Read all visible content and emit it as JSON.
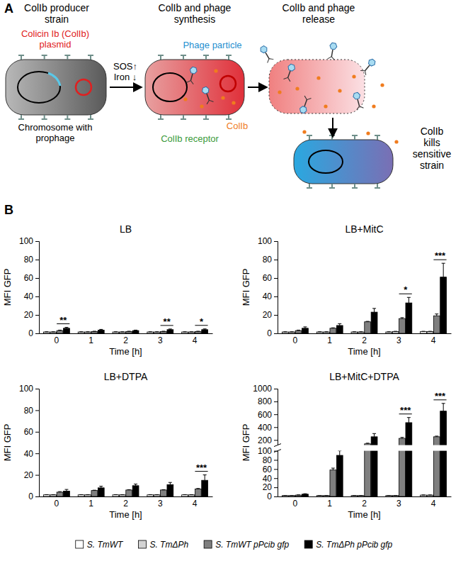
{
  "panels": [
    "A",
    "B"
  ],
  "diagram": {
    "titles": [
      [
        "ColIb producer",
        "strain"
      ],
      [
        "ColIb and phage",
        "synthesis"
      ],
      [
        "ColIb and phage",
        "release"
      ]
    ],
    "plasmid": [
      "Colicin Ib (ColIb)",
      "plasmid"
    ],
    "chromosome": [
      "Chromosome with",
      "prophage"
    ],
    "conditions": [
      "SOS↑",
      "Iron ↓"
    ],
    "phage": "Phage particle",
    "colicin": "ColIb",
    "receptor": "ColIb receptor",
    "killing": [
      "ColIb",
      "kills",
      "sensitive",
      "strain"
    ]
  },
  "chart_data": [
    {
      "type": "bar",
      "title": "LB",
      "x_label": "Time [h]",
      "y_label": "MFI GFP",
      "categories": [
        0,
        1,
        2,
        3,
        4
      ],
      "ylim": [
        0,
        100
      ],
      "yticks": [
        0,
        20,
        40,
        60,
        80,
        100
      ],
      "series": [
        {
          "name": "S. TmWT",
          "color": "#ffffff",
          "values": [
            1.5,
            1.5,
            1.5,
            1.5,
            1.5
          ],
          "errors": [
            0.2,
            0.2,
            0.2,
            0.2,
            0.2
          ]
        },
        {
          "name": "S. TmΔPh",
          "color": "#d3d3d3",
          "values": [
            1.5,
            1.5,
            1.5,
            1.5,
            1.5
          ],
          "errors": [
            0.2,
            0.2,
            0.2,
            0.2,
            0.2
          ]
        },
        {
          "name": "S. TmWT pPcib gfp",
          "color": "#7f7f7f",
          "values": [
            3,
            2,
            2,
            2,
            2
          ],
          "errors": [
            0.5,
            0.3,
            0.3,
            0.3,
            0.3
          ]
        },
        {
          "name": "S. TmΔPh pPcib gfp",
          "color": "#000000",
          "values": [
            5.5,
            3.5,
            3,
            4,
            4
          ],
          "errors": [
            1,
            0.8,
            0.5,
            0.7,
            0.8
          ]
        }
      ],
      "annotations": [
        {
          "x": 0,
          "text": "**"
        },
        {
          "x": 3,
          "text": "**"
        },
        {
          "x": 4,
          "text": "*"
        }
      ]
    },
    {
      "type": "bar",
      "title": "LB+MitC",
      "x_label": "Time [h]",
      "y_label": "MFI GFP",
      "categories": [
        0,
        1,
        2,
        3,
        4
      ],
      "ylim": [
        0,
        100
      ],
      "yticks": [
        0,
        20,
        40,
        60,
        80,
        100
      ],
      "series": [
        {
          "color": "#ffffff",
          "values": [
            1.5,
            1.5,
            1.5,
            1.5,
            2
          ],
          "errors": [
            0.2,
            0.2,
            0.2,
            0.2,
            0.2
          ]
        },
        {
          "color": "#d3d3d3",
          "values": [
            1.5,
            1.5,
            1.5,
            2,
            2
          ],
          "errors": [
            0.2,
            0.2,
            0.2,
            0.2,
            0.2
          ]
        },
        {
          "color": "#7f7f7f",
          "values": [
            3,
            5.5,
            12.5,
            16,
            19
          ],
          "errors": [
            0.5,
            0.5,
            0.5,
            1,
            2
          ]
        },
        {
          "color": "#000000",
          "values": [
            5.5,
            8.5,
            23,
            33,
            61
          ],
          "errors": [
            1.5,
            2,
            4,
            6,
            15
          ]
        }
      ],
      "annotations": [
        {
          "x": 3,
          "text": "*"
        },
        {
          "x": 4,
          "text": "***"
        }
      ]
    },
    {
      "type": "bar",
      "title": "LB+DTPA",
      "x_label": "Time [h]",
      "y_label": "MFI GFP",
      "categories": [
        0,
        1,
        2,
        3,
        4
      ],
      "ylim": [
        0,
        100
      ],
      "yticks": [
        0,
        20,
        40,
        60,
        80,
        100
      ],
      "series": [
        {
          "color": "#ffffff",
          "values": [
            1.5,
            1.5,
            1.5,
            1.5,
            1.5
          ],
          "errors": [
            0.2,
            0.2,
            0.2,
            0.2,
            0.2
          ]
        },
        {
          "color": "#d3d3d3",
          "values": [
            1.5,
            1.5,
            1.5,
            1.5,
            1.5
          ],
          "errors": [
            0.2,
            0.2,
            0.2,
            0.2,
            0.2
          ]
        },
        {
          "color": "#7f7f7f",
          "values": [
            4,
            5.5,
            6,
            6,
            7
          ],
          "errors": [
            0.5,
            0.3,
            0.3,
            0.3,
            0.4
          ]
        },
        {
          "color": "#000000",
          "values": [
            5,
            8,
            10,
            11,
            15
          ],
          "errors": [
            1.5,
            1.5,
            1.5,
            2,
            5
          ]
        }
      ],
      "annotations": [
        {
          "x": 4,
          "text": "***"
        }
      ]
    },
    {
      "type": "bar",
      "title": "LB+MitC+DTPA",
      "x_label": "Time [h]",
      "y_label": "MFI GFP",
      "categories": [
        0,
        1,
        2,
        3,
        4
      ],
      "ylim": [
        0,
        1000
      ],
      "yticks": [
        0,
        20,
        40,
        60,
        80,
        100,
        200,
        400,
        600,
        800,
        1000
      ],
      "series": [
        {
          "color": "#ffffff",
          "values": [
            2,
            2,
            2,
            2,
            3
          ],
          "errors": [
            0.3,
            0.3,
            0.3,
            0.3,
            0.3
          ]
        },
        {
          "color": "#d3d3d3",
          "values": [
            2,
            2,
            2,
            2,
            3
          ],
          "errors": [
            0.3,
            0.3,
            0.3,
            0.3,
            0.3
          ]
        },
        {
          "color": "#7f7f7f",
          "values": [
            3,
            58,
            140,
            225,
            250
          ],
          "errors": [
            0.5,
            4,
            10,
            15,
            10
          ]
        },
        {
          "color": "#000000",
          "values": [
            5,
            90,
            250,
            470,
            650
          ],
          "errors": [
            1,
            10,
            50,
            80,
            120
          ]
        }
      ],
      "annotations": [
        {
          "x": 3,
          "text": "***"
        },
        {
          "x": 4,
          "text": "***"
        }
      ]
    }
  ]
}
